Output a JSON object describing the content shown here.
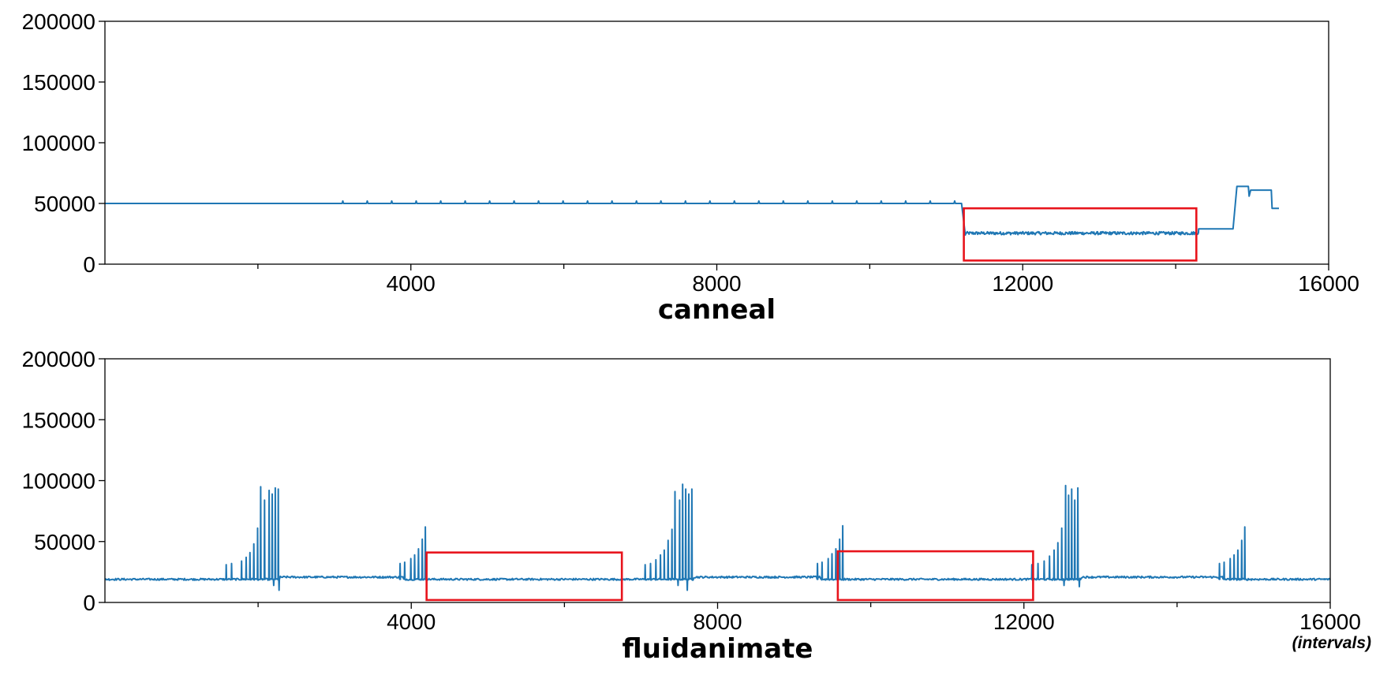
{
  "chart_data": [
    {
      "type": "line",
      "title": "canneal",
      "xlim": [
        0,
        16000
      ],
      "ylim": [
        0,
        200000
      ],
      "xticks": [
        4000,
        8000,
        12000,
        16000
      ],
      "xticks_minor": [
        2000,
        6000,
        10000,
        14000
      ],
      "yticks": [
        0,
        50000,
        100000,
        150000,
        200000
      ],
      "xtick_labels": [
        "4000",
        "8000",
        "12000",
        "16000"
      ],
      "ytick_labels": [
        "0",
        "50000",
        "100000",
        "150000",
        "200000"
      ],
      "grid": false,
      "series": [
        {
          "color": "#1f77b4",
          "segments": [
            {
              "x": [
                0,
                11200
              ],
              "y": [
                50000,
                50000
              ],
              "spike_every": 320,
              "spike_start": 3100,
              "spike_to": 52000
            },
            {
              "x": [
                11200,
                11250
              ],
              "y": [
                50000,
                24000
              ]
            },
            {
              "x": [
                11250,
                14300
              ],
              "y": [
                25500,
                25500
              ],
              "noise": 2500
            },
            {
              "x": [
                14300,
                14750
              ],
              "y": [
                29000,
                29000
              ]
            },
            {
              "x": [
                14750,
                14800,
                14950,
                14960,
                14980,
                15000,
                15250,
                15260,
                15350
              ],
              "y": [
                29000,
                64000,
                64000,
                56000,
                61000,
                61000,
                61000,
                46000,
                46000
              ]
            }
          ]
        }
      ],
      "highlights": [
        {
          "x0": 11230,
          "x1": 14270,
          "y0": 3000,
          "y1": 46000,
          "color": "#e8141c"
        }
      ]
    },
    {
      "type": "line",
      "title": "fluidanimate",
      "xlim": [
        0,
        16000
      ],
      "ylim": [
        0,
        200000
      ],
      "xticks": [
        4000,
        8000,
        12000,
        16000
      ],
      "xticks_minor": [
        2000,
        6000,
        10000,
        14000
      ],
      "yticks": [
        0,
        50000,
        100000,
        150000,
        200000
      ],
      "xtick_labels": [
        "4000",
        "8000",
        "12000",
        "16000"
      ],
      "ytick_labels": [
        "0",
        "50000",
        "100000",
        "150000",
        "200000"
      ],
      "grid": false,
      "x_unit_note": "(intervals)",
      "series": [
        {
          "color": "#1f77b4",
          "baseline": 19000,
          "noise": 1500,
          "spike_groups": [
            {
              "x": [
                1580,
                1650,
                1780,
                1840,
                1890,
                1940,
                1990,
                2030,
                2080,
                2140,
                2180,
                2220,
                2260
              ],
              "peaks": [
                31000,
                32000,
                34000,
                37000,
                41000,
                48000,
                61000,
                95000,
                84000,
                92000,
                89000,
                94000,
                93000
              ]
            },
            {
              "x": [
                3850,
                3910,
                3990,
                4040,
                4090,
                4140,
                4180
              ],
              "peaks": [
                32000,
                33000,
                36000,
                39000,
                44000,
                52000,
                62000
              ]
            },
            {
              "x": [
                7050,
                7120,
                7190,
                7250,
                7300,
                7350,
                7400,
                7440,
                7500,
                7540,
                7580,
                7620,
                7660
              ],
              "peaks": [
                31000,
                32000,
                35000,
                39000,
                43000,
                51000,
                60000,
                91000,
                84000,
                97000,
                93000,
                89000,
                93000
              ]
            },
            {
              "x": [
                9300,
                9360,
                9440,
                9490,
                9540,
                9590,
                9630
              ],
              "peaks": [
                32000,
                33000,
                36000,
                40000,
                44000,
                52000,
                63000
              ]
            },
            {
              "x": [
                12100,
                12180,
                12260,
                12330,
                12390,
                12440,
                12490,
                12540,
                12580,
                12620,
                12660,
                12700
              ],
              "peaks": [
                31000,
                32000,
                34000,
                38000,
                43000,
                49000,
                61000,
                96000,
                88000,
                93000,
                84000,
                94000
              ]
            },
            {
              "x": [
                14550,
                14610,
                14690,
                14740,
                14790,
                14840,
                14880
              ],
              "peaks": [
                32000,
                33000,
                36000,
                39000,
                43000,
                51000,
                62000
              ]
            }
          ],
          "dips": [
            {
              "x": 2200,
              "y": 14000
            },
            {
              "x": 2270,
              "y": 10000
            },
            {
              "x": 7480,
              "y": 14000
            },
            {
              "x": 7600,
              "y": 10000
            },
            {
              "x": 12520,
              "y": 14000
            },
            {
              "x": 12720,
              "y": 13000
            }
          ]
        }
      ],
      "highlights": [
        {
          "x0": 4200,
          "x1": 6750,
          "y0": 2000,
          "y1": 41000,
          "color": "#e8141c"
        },
        {
          "x0": 9570,
          "x1": 12120,
          "y0": 2000,
          "y1": 42000,
          "color": "#e8141c"
        }
      ]
    }
  ]
}
